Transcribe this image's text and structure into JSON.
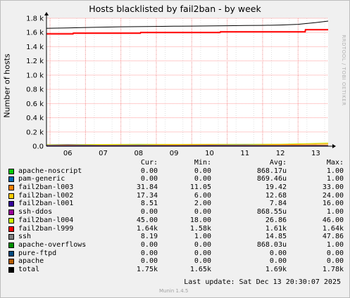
{
  "title": "Hosts blacklisted by fail2ban - by week",
  "ylabel": "Number of hosts",
  "watermark": "RRDTOOL / TOBI OETIKER",
  "footer": {
    "last_update": "Last update:  Sat Dec 13 20:30:07 2025",
    "version": "Munin 1.4.5"
  },
  "legend_headers": {
    "cur": "Cur:",
    "min": "Min:",
    "avg": "Avg:",
    "max": "Max:"
  },
  "legend": [
    {
      "name": "apache-noscript",
      "color": "#00cc00",
      "cur": "0.00",
      "min": "0.00",
      "avg": "868.17u",
      "max": "1.00"
    },
    {
      "name": "pam-generic",
      "color": "#0066b3",
      "cur": "0.00",
      "min": "0.00",
      "avg": "869.46u",
      "max": "1.00"
    },
    {
      "name": "fail2ban-l003",
      "color": "#ff8000",
      "cur": "31.84",
      "min": "11.05",
      "avg": "19.42",
      "max": "33.00"
    },
    {
      "name": "fail2ban-l002",
      "color": "#ffcc00",
      "cur": "17.34",
      "min": "6.00",
      "avg": "12.68",
      "max": "24.00"
    },
    {
      "name": "fail2ban-l001",
      "color": "#330099",
      "cur": "8.51",
      "min": "2.00",
      "avg": "7.84",
      "max": "16.00"
    },
    {
      "name": "ssh-ddos",
      "color": "#990099",
      "cur": "0.00",
      "min": "0.00",
      "avg": "868.55u",
      "max": "1.00"
    },
    {
      "name": "fail2ban-l004",
      "color": "#ccff00",
      "cur": "45.00",
      "min": "18.00",
      "avg": "26.86",
      "max": "46.00"
    },
    {
      "name": "fail2ban-l999",
      "color": "#ff0000",
      "cur": "1.64k",
      "min": "1.58k",
      "avg": "1.61k",
      "max": "1.64k"
    },
    {
      "name": "ssh",
      "color": "#808080",
      "cur": "8.19",
      "min": "1.00",
      "avg": "14.85",
      "max": "47.86"
    },
    {
      "name": "apache-overflows",
      "color": "#008f00",
      "cur": "0.00",
      "min": "0.00",
      "avg": "868.03u",
      "max": "1.00"
    },
    {
      "name": "pure-ftpd",
      "color": "#00487d",
      "cur": "0.00",
      "min": "0.00",
      "avg": "0.00",
      "max": "0.00"
    },
    {
      "name": "apache",
      "color": "#b35a00",
      "cur": "0.00",
      "min": "0.00",
      "avg": "0.00",
      "max": "0.00"
    },
    {
      "name": "total",
      "color": "#000000",
      "cur": "1.75k",
      "min": "1.65k",
      "avg": "1.69k",
      "max": "1.78k"
    }
  ],
  "chart_data": {
    "type": "line",
    "title": "Hosts blacklisted by fail2ban - by week",
    "ylabel": "Number of hosts",
    "ylim": [
      0,
      1800
    ],
    "y_ticks": [
      "0.0",
      "0.2 k",
      "0.4 k",
      "0.6 k",
      "0.8 k",
      "1.0 k",
      "1.2 k",
      "1.4 k",
      "1.6 k",
      "1.8 k"
    ],
    "y_tick_values": [
      0,
      200,
      400,
      600,
      800,
      1000,
      1200,
      1400,
      1600,
      1800
    ],
    "x_ticks": [
      "06",
      "07",
      "08",
      "09",
      "10",
      "11",
      "12",
      "13"
    ],
    "x_range_days": [
      5.4,
      13.35
    ],
    "grid": true,
    "series": [
      {
        "name": "total",
        "color": "#000000",
        "x": [
          5.4,
          6,
          6.5,
          7,
          7.5,
          8,
          8.5,
          9,
          9.5,
          10,
          10.5,
          11,
          11.5,
          12,
          12.5,
          13,
          13.35
        ],
        "values": [
          1660,
          1665,
          1670,
          1675,
          1680,
          1682,
          1685,
          1688,
          1690,
          1692,
          1695,
          1698,
          1700,
          1705,
          1715,
          1740,
          1760
        ]
      },
      {
        "name": "fail2ban-l999",
        "color": "#ff0000",
        "x": [
          5.4,
          6.15,
          6.16,
          8.05,
          8.06,
          10.3,
          10.31,
          12.7,
          12.71,
          13.35
        ],
        "values": [
          1580,
          1580,
          1590,
          1590,
          1600,
          1600,
          1610,
          1610,
          1640,
          1640
        ]
      },
      {
        "name": "fail2ban-l004",
        "color": "#ccff00",
        "x": [
          5.4,
          6,
          7,
          8,
          9,
          10,
          11,
          12,
          13,
          13.35
        ],
        "values": [
          22,
          24,
          25,
          27,
          26,
          28,
          27,
          29,
          40,
          45
        ]
      },
      {
        "name": "fail2ban-l003",
        "color": "#ff8000",
        "x": [
          5.4,
          6,
          7,
          8,
          9,
          10,
          11,
          12,
          13,
          13.35
        ],
        "values": [
          14,
          16,
          18,
          19,
          20,
          21,
          20,
          22,
          30,
          32
        ]
      },
      {
        "name": "ssh",
        "color": "#808080",
        "x": [
          5.4,
          6,
          7,
          8,
          9,
          10,
          11,
          12,
          13,
          13.35
        ],
        "values": [
          18,
          25,
          12,
          20,
          10,
          15,
          22,
          12,
          16,
          8
        ]
      },
      {
        "name": "fail2ban-l002",
        "color": "#ffcc00",
        "x": [
          5.4,
          6,
          7,
          8,
          9,
          10,
          11,
          12,
          13,
          13.35
        ],
        "values": [
          10,
          11,
          12,
          13,
          12,
          13,
          12,
          14,
          16,
          17
        ]
      },
      {
        "name": "fail2ban-l001",
        "color": "#330099",
        "x": [
          5.4,
          6,
          7,
          8,
          9,
          10,
          11,
          12,
          13,
          13.35
        ],
        "values": [
          6,
          8,
          7,
          8,
          7,
          9,
          8,
          8,
          9,
          8
        ]
      }
    ]
  }
}
